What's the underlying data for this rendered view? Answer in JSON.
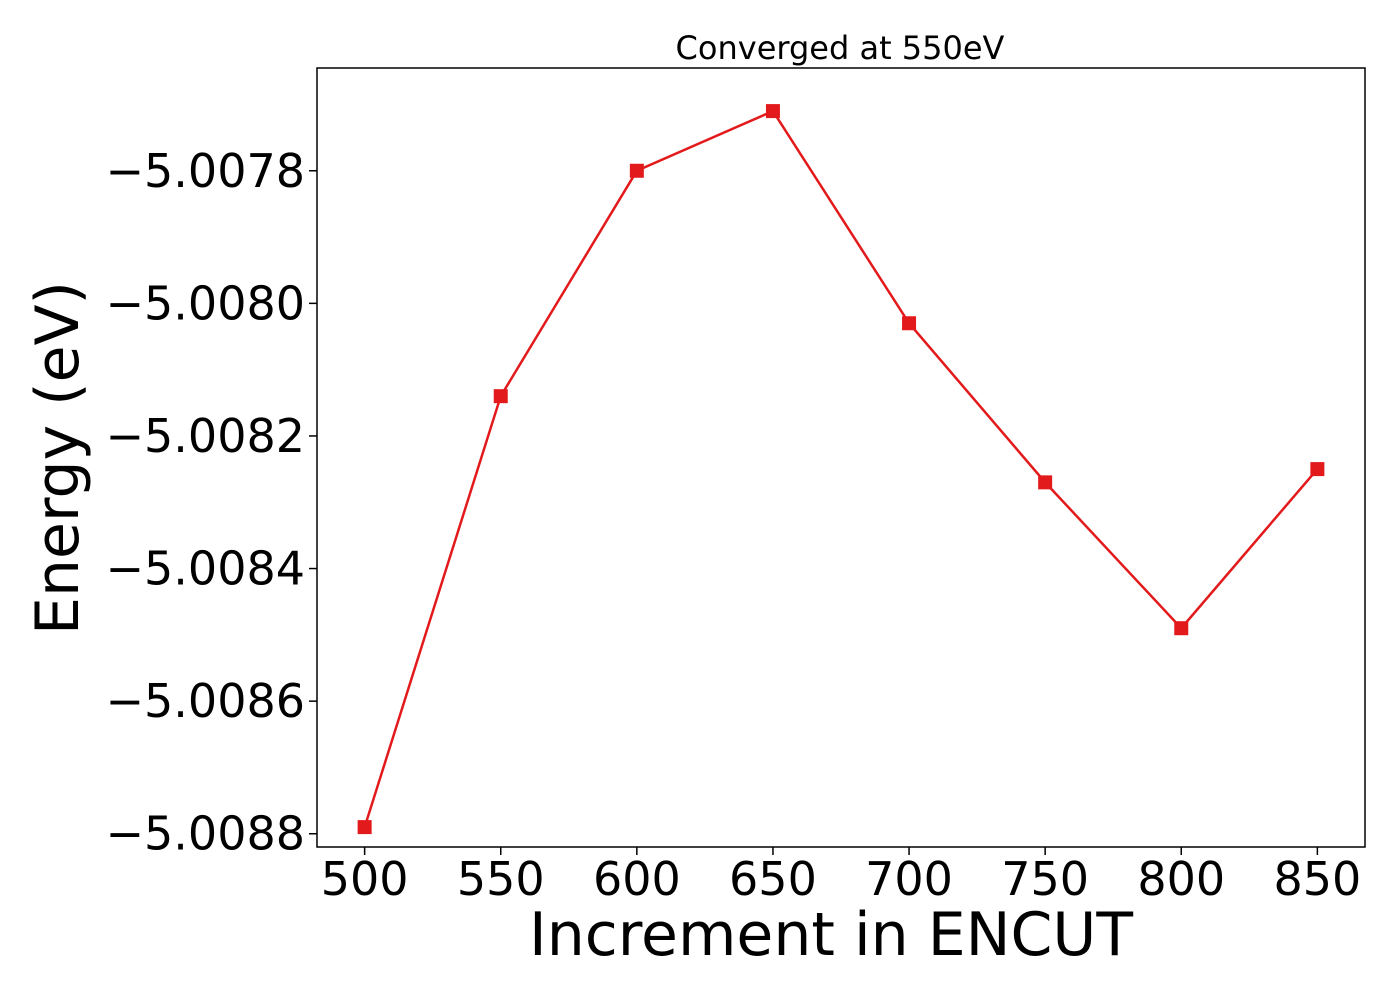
{
  "chart_data": {
    "type": "line",
    "title": "Converged at 550eV",
    "xlabel": "Increment in ENCUT",
    "ylabel": "Energy (eV)",
    "x": [
      500,
      550,
      600,
      650,
      700,
      750,
      800,
      850
    ],
    "series": [
      {
        "values": [
          -5.00879,
          -5.00814,
          -5.0078,
          -5.00771,
          -5.00803,
          -5.00827,
          -5.00849,
          -5.00825
        ]
      }
    ],
    "xticks": [
      "500",
      "550",
      "600",
      "650",
      "700",
      "750",
      "800",
      "850"
    ],
    "yticks": [
      "−5.0078",
      "−5.0080",
      "−5.0082",
      "−5.0084",
      "−5.0086",
      "−5.0088"
    ],
    "ytick_values": [
      -5.0078,
      -5.008,
      -5.0082,
      -5.0084,
      -5.0086,
      -5.0088
    ],
    "xlim": [
      482.5,
      867.5
    ],
    "ylim": [
      -5.00882,
      -5.007645
    ],
    "marker": "square",
    "grid": false,
    "colors": {
      "series": "#e31a1c"
    }
  }
}
